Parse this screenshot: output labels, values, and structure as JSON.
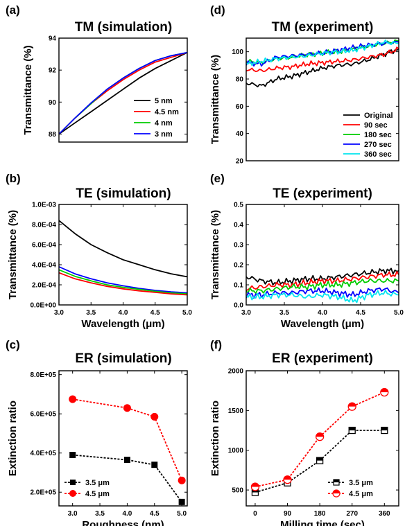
{
  "chart_data": [
    {
      "id": "a",
      "panel_label": "(a)",
      "type": "line",
      "title": "TM (simulation)",
      "xlabel": "",
      "ylabel": "Transmittance (%)",
      "xlim": [
        3.0,
        5.0
      ],
      "ylim": [
        87.5,
        94
      ],
      "xticks": [],
      "yticks": [
        88,
        90,
        92,
        94
      ],
      "ytick_labels": [
        "88",
        "90",
        "92",
        "94"
      ],
      "legend": "bottom-right",
      "series": [
        {
          "name": "5 nm",
          "color": "#000000",
          "x": [
            3.0,
            3.25,
            3.5,
            3.75,
            4.0,
            4.25,
            4.5,
            4.75,
            5.0
          ],
          "values": [
            88.0,
            88.7,
            89.4,
            90.1,
            90.8,
            91.5,
            92.1,
            92.6,
            93.1
          ]
        },
        {
          "name": "4.5 nm",
          "color": "#ff0000",
          "x": [
            3.0,
            3.25,
            3.5,
            3.75,
            4.0,
            4.25,
            4.5,
            4.75,
            5.0
          ],
          "values": [
            88.0,
            89.0,
            89.9,
            90.7,
            91.4,
            92.0,
            92.5,
            92.8,
            93.1
          ]
        },
        {
          "name": "4 nm",
          "color": "#00cc00",
          "x": [
            3.0,
            3.25,
            3.5,
            3.75,
            4.0,
            4.25,
            4.5,
            4.75,
            5.0
          ],
          "values": [
            88.0,
            89.0,
            89.9,
            90.8,
            91.5,
            92.1,
            92.6,
            92.9,
            93.1
          ]
        },
        {
          "name": "3 nm",
          "color": "#0000ff",
          "x": [
            3.0,
            3.25,
            3.5,
            3.75,
            4.0,
            4.25,
            4.5,
            4.75,
            5.0
          ],
          "values": [
            88.0,
            89.0,
            89.95,
            90.8,
            91.5,
            92.1,
            92.6,
            92.9,
            93.1
          ]
        }
      ]
    },
    {
      "id": "b",
      "panel_label": "(b)",
      "type": "line",
      "title": "TE (simulation)",
      "xlabel": "Wavelength (μm)",
      "ylabel": "Transmittance (%)",
      "xlim": [
        3.0,
        5.0
      ],
      "ylim": [
        0,
        0.001
      ],
      "xticks": [
        3.0,
        3.5,
        4.0,
        4.5,
        5.0
      ],
      "xtick_labels": [
        "3.0",
        "3.5",
        "4.0",
        "4.5",
        "5.0"
      ],
      "yticks": [
        0,
        0.0002,
        0.0004,
        0.0006,
        0.0008,
        0.001
      ],
      "ytick_labels": [
        "0.0E+00",
        "2.0E-04",
        "4.0E-04",
        "6.0E-04",
        "8.0E-04",
        "1.0E-03"
      ],
      "series": [
        {
          "color": "#000000",
          "x": [
            3.0,
            3.25,
            3.5,
            3.75,
            4.0,
            4.25,
            4.5,
            4.75,
            5.0
          ],
          "values": [
            0.00084,
            0.00071,
            0.0006,
            0.00052,
            0.00045,
            0.0004,
            0.00035,
            0.00031,
            0.00028
          ]
        },
        {
          "color": "#0000ff",
          "x": [
            3.0,
            3.25,
            3.5,
            3.75,
            4.0,
            4.25,
            4.5,
            4.75,
            5.0
          ],
          "values": [
            0.00038,
            0.00031,
            0.00026,
            0.00022,
            0.00019,
            0.000165,
            0.000145,
            0.00013,
            0.00012
          ]
        },
        {
          "color": "#00cc00",
          "x": [
            3.0,
            3.25,
            3.5,
            3.75,
            4.0,
            4.25,
            4.5,
            4.75,
            5.0
          ],
          "values": [
            0.00035,
            0.000285,
            0.00024,
            0.0002,
            0.000175,
            0.000155,
            0.000135,
            0.00012,
            0.00011
          ]
        },
        {
          "color": "#ff0000",
          "x": [
            3.0,
            3.25,
            3.5,
            3.75,
            4.0,
            4.25,
            4.5,
            4.75,
            5.0
          ],
          "values": [
            0.00032,
            0.00026,
            0.00022,
            0.000185,
            0.00016,
            0.00014,
            0.000125,
            0.00011,
            0.0001
          ]
        }
      ]
    },
    {
      "id": "c",
      "panel_label": "(c)",
      "type": "line",
      "title": "ER (simulation)",
      "xlabel": "Roughness (nm)",
      "ylabel": "Extinction ratio",
      "xlim": [
        2.75,
        5.1
      ],
      "ylim": [
        130000,
        820000
      ],
      "xticks": [
        3.0,
        3.5,
        4.0,
        4.5,
        5.0
      ],
      "xtick_labels": [
        "3.0",
        "3.5",
        "4.0",
        "4.5",
        "5.0"
      ],
      "yticks": [
        200000,
        400000,
        600000,
        800000
      ],
      "ytick_labels": [
        "2.0E+05",
        "4.0E+05",
        "6.0E+05",
        "8.0E+05"
      ],
      "legend": "bottom-left",
      "series": [
        {
          "name": "3.5 μm",
          "color": "#000000",
          "marker": "square",
          "x": [
            3.0,
            4.0,
            4.5,
            5.0
          ],
          "values": [
            390000,
            365000,
            340000,
            150000
          ]
        },
        {
          "name": "4.5 μm",
          "color": "#ff0000",
          "marker": "circle",
          "x": [
            3.0,
            4.0,
            4.5,
            5.0
          ],
          "values": [
            675000,
            630000,
            585000,
            260000
          ]
        }
      ]
    },
    {
      "id": "d",
      "panel_label": "(d)",
      "type": "line",
      "title": "TM (experiment)",
      "xlabel": "",
      "ylabel": "Transmittance (%)",
      "xlim": [
        3.0,
        5.0
      ],
      "ylim": [
        20,
        110
      ],
      "xticks": [],
      "yticks": [
        20,
        40,
        60,
        80,
        100
      ],
      "ytick_labels": [
        "20",
        "40",
        "60",
        "80",
        "100"
      ],
      "legend": "bottom-right",
      "series": [
        {
          "name": "Original",
          "color": "#000000",
          "x": [
            3.0,
            3.2,
            3.4,
            3.6,
            3.8,
            4.0,
            4.2,
            4.4,
            4.6,
            4.8,
            5.0
          ],
          "values": [
            77,
            75,
            80,
            82,
            85,
            88,
            90,
            91,
            94,
            98,
            102
          ]
        },
        {
          "name": "90 sec",
          "color": "#ff0000",
          "x": [
            3.0,
            3.2,
            3.4,
            3.6,
            3.8,
            4.0,
            4.2,
            4.4,
            4.6,
            4.8,
            5.0
          ],
          "values": [
            87,
            86,
            88,
            89,
            91,
            92,
            93,
            94,
            96,
            98,
            102
          ]
        },
        {
          "name": "180 sec",
          "color": "#00cc00",
          "x": [
            3.0,
            3.2,
            3.4,
            3.6,
            3.8,
            4.0,
            4.2,
            4.4,
            4.6,
            4.8,
            5.0
          ],
          "values": [
            93,
            92,
            95,
            96,
            98,
            99,
            100,
            102,
            104,
            106,
            108
          ]
        },
        {
          "name": "270 sec",
          "color": "#0000ff",
          "x": [
            3.0,
            3.2,
            3.4,
            3.6,
            3.8,
            4.0,
            4.2,
            4.4,
            4.6,
            4.8,
            5.0
          ],
          "values": [
            92,
            91,
            96,
            97,
            98,
            99,
            101,
            103,
            105,
            106,
            107
          ]
        },
        {
          "name": "360 sec",
          "color": "#00e5ee",
          "x": [
            3.0,
            3.2,
            3.4,
            3.6,
            3.8,
            4.0,
            4.2,
            4.4,
            4.6,
            4.8,
            5.0
          ],
          "values": [
            91,
            93,
            95,
            96,
            97,
            99,
            100,
            101,
            104,
            107,
            106
          ]
        }
      ]
    },
    {
      "id": "e",
      "panel_label": "(e)",
      "type": "line",
      "title": "TE (experiment)",
      "xlabel": "Wavelength (μm)",
      "ylabel": "Transmittance (%)",
      "xlim": [
        3.0,
        5.0
      ],
      "ylim": [
        0,
        0.5
      ],
      "xticks": [
        3.0,
        3.5,
        4.0,
        4.5,
        5.0
      ],
      "xtick_labels": [
        "3.0",
        "3.5",
        "4.0",
        "4.5",
        "5.0"
      ],
      "yticks": [
        0,
        0.1,
        0.2,
        0.3,
        0.4,
        0.5
      ],
      "ytick_labels": [
        "0.0",
        "0.1",
        "0.2",
        "0.3",
        "0.4",
        "0.5"
      ],
      "series": [
        {
          "color": "#000000",
          "x": [
            3.0,
            3.2,
            3.4,
            3.6,
            3.8,
            4.0,
            4.2,
            4.4,
            4.6,
            4.8,
            5.0
          ],
          "values": [
            0.14,
            0.12,
            0.11,
            0.12,
            0.13,
            0.13,
            0.14,
            0.15,
            0.16,
            0.17,
            0.17
          ]
        },
        {
          "color": "#ff0000",
          "x": [
            3.0,
            3.2,
            3.4,
            3.6,
            3.8,
            4.0,
            4.2,
            4.4,
            4.6,
            4.8,
            5.0
          ],
          "values": [
            0.08,
            0.09,
            0.1,
            0.1,
            0.11,
            0.12,
            0.12,
            0.13,
            0.14,
            0.15,
            0.15
          ]
        },
        {
          "color": "#00cc00",
          "x": [
            3.0,
            3.2,
            3.4,
            3.6,
            3.8,
            4.0,
            4.2,
            4.4,
            4.6,
            4.8,
            5.0
          ],
          "values": [
            0.07,
            0.07,
            0.08,
            0.09,
            0.09,
            0.1,
            0.1,
            0.11,
            0.12,
            0.12,
            0.12
          ]
        },
        {
          "color": "#0000ff",
          "x": [
            3.0,
            3.2,
            3.4,
            3.6,
            3.8,
            4.0,
            4.2,
            4.4,
            4.6,
            4.8,
            5.0
          ],
          "values": [
            0.05,
            0.05,
            0.06,
            0.06,
            0.07,
            0.07,
            0.06,
            0.05,
            0.07,
            0.08,
            0.06
          ]
        },
        {
          "color": "#00e5ee",
          "x": [
            3.0,
            3.2,
            3.4,
            3.6,
            3.8,
            4.0,
            4.2,
            4.4,
            4.6,
            4.8,
            5.0
          ],
          "values": [
            0.04,
            0.04,
            0.05,
            0.05,
            0.04,
            0.05,
            0.04,
            0.02,
            0.05,
            0.06,
            0.05
          ]
        }
      ]
    },
    {
      "id": "f",
      "panel_label": "(f)",
      "type": "line",
      "title": "ER (experiment)",
      "xlabel": "Milling time (sec)",
      "ylabel": "Extinction ratio",
      "xlim": [
        -25,
        400
      ],
      "ylim": [
        300,
        2000
      ],
      "xticks": [
        0,
        90,
        180,
        270,
        360
      ],
      "xtick_labels": [
        "0",
        "90",
        "180",
        "270",
        "360"
      ],
      "yticks": [
        500,
        1000,
        1500,
        2000
      ],
      "ytick_labels": [
        "500",
        "1000",
        "1500",
        "2000"
      ],
      "legend": "bottom-right",
      "series": [
        {
          "name": "3.5 μm",
          "color": "#000000",
          "marker": "open-square",
          "x": [
            0,
            90,
            180,
            270,
            360
          ],
          "values": [
            470,
            590,
            870,
            1250,
            1250
          ]
        },
        {
          "name": "4.5 μm",
          "color": "#ff0000",
          "marker": "open-circle",
          "x": [
            0,
            90,
            180,
            270,
            360
          ],
          "values": [
            540,
            630,
            1170,
            1550,
            1730
          ]
        }
      ]
    }
  ]
}
